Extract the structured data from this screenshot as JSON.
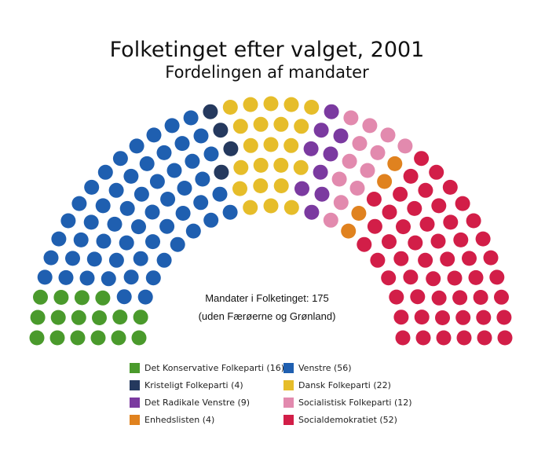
{
  "title": "Folketinget efter valget, 2001",
  "subtitle": "Fordelingen af mandater",
  "info": {
    "line1": "Mandater i Folketinget: 175",
    "line2": "(uden Færøerne og Grønland)"
  },
  "chart_data": {
    "type": "parliament",
    "total": 175,
    "series": [
      {
        "name": "Det Konservative Folkeparti (16)",
        "seats": 16,
        "color": "#4a9a2c"
      },
      {
        "name": "Venstre (56)",
        "seats": 56,
        "color": "#1f5fb0"
      },
      {
        "name": "Kristeligt Folkeparti (4)",
        "seats": 4,
        "color": "#25395e"
      },
      {
        "name": "Dansk Folkeparti (22)",
        "seats": 22,
        "color": "#e6bd2a"
      },
      {
        "name": "Det Radikale Venstre (9)",
        "seats": 9,
        "color": "#7b3aa0"
      },
      {
        "name": "Socialistisk Folkeparti (12)",
        "seats": 12,
        "color": "#e28aae"
      },
      {
        "name": "Enhedslisten (4)",
        "seats": 4,
        "color": "#e0821f"
      },
      {
        "name": "Socialdemokratiet (52)",
        "seats": 52,
        "color": "#d21e48"
      }
    ],
    "legend_order": [
      0,
      1,
      2,
      3,
      4,
      5,
      6,
      7
    ]
  }
}
